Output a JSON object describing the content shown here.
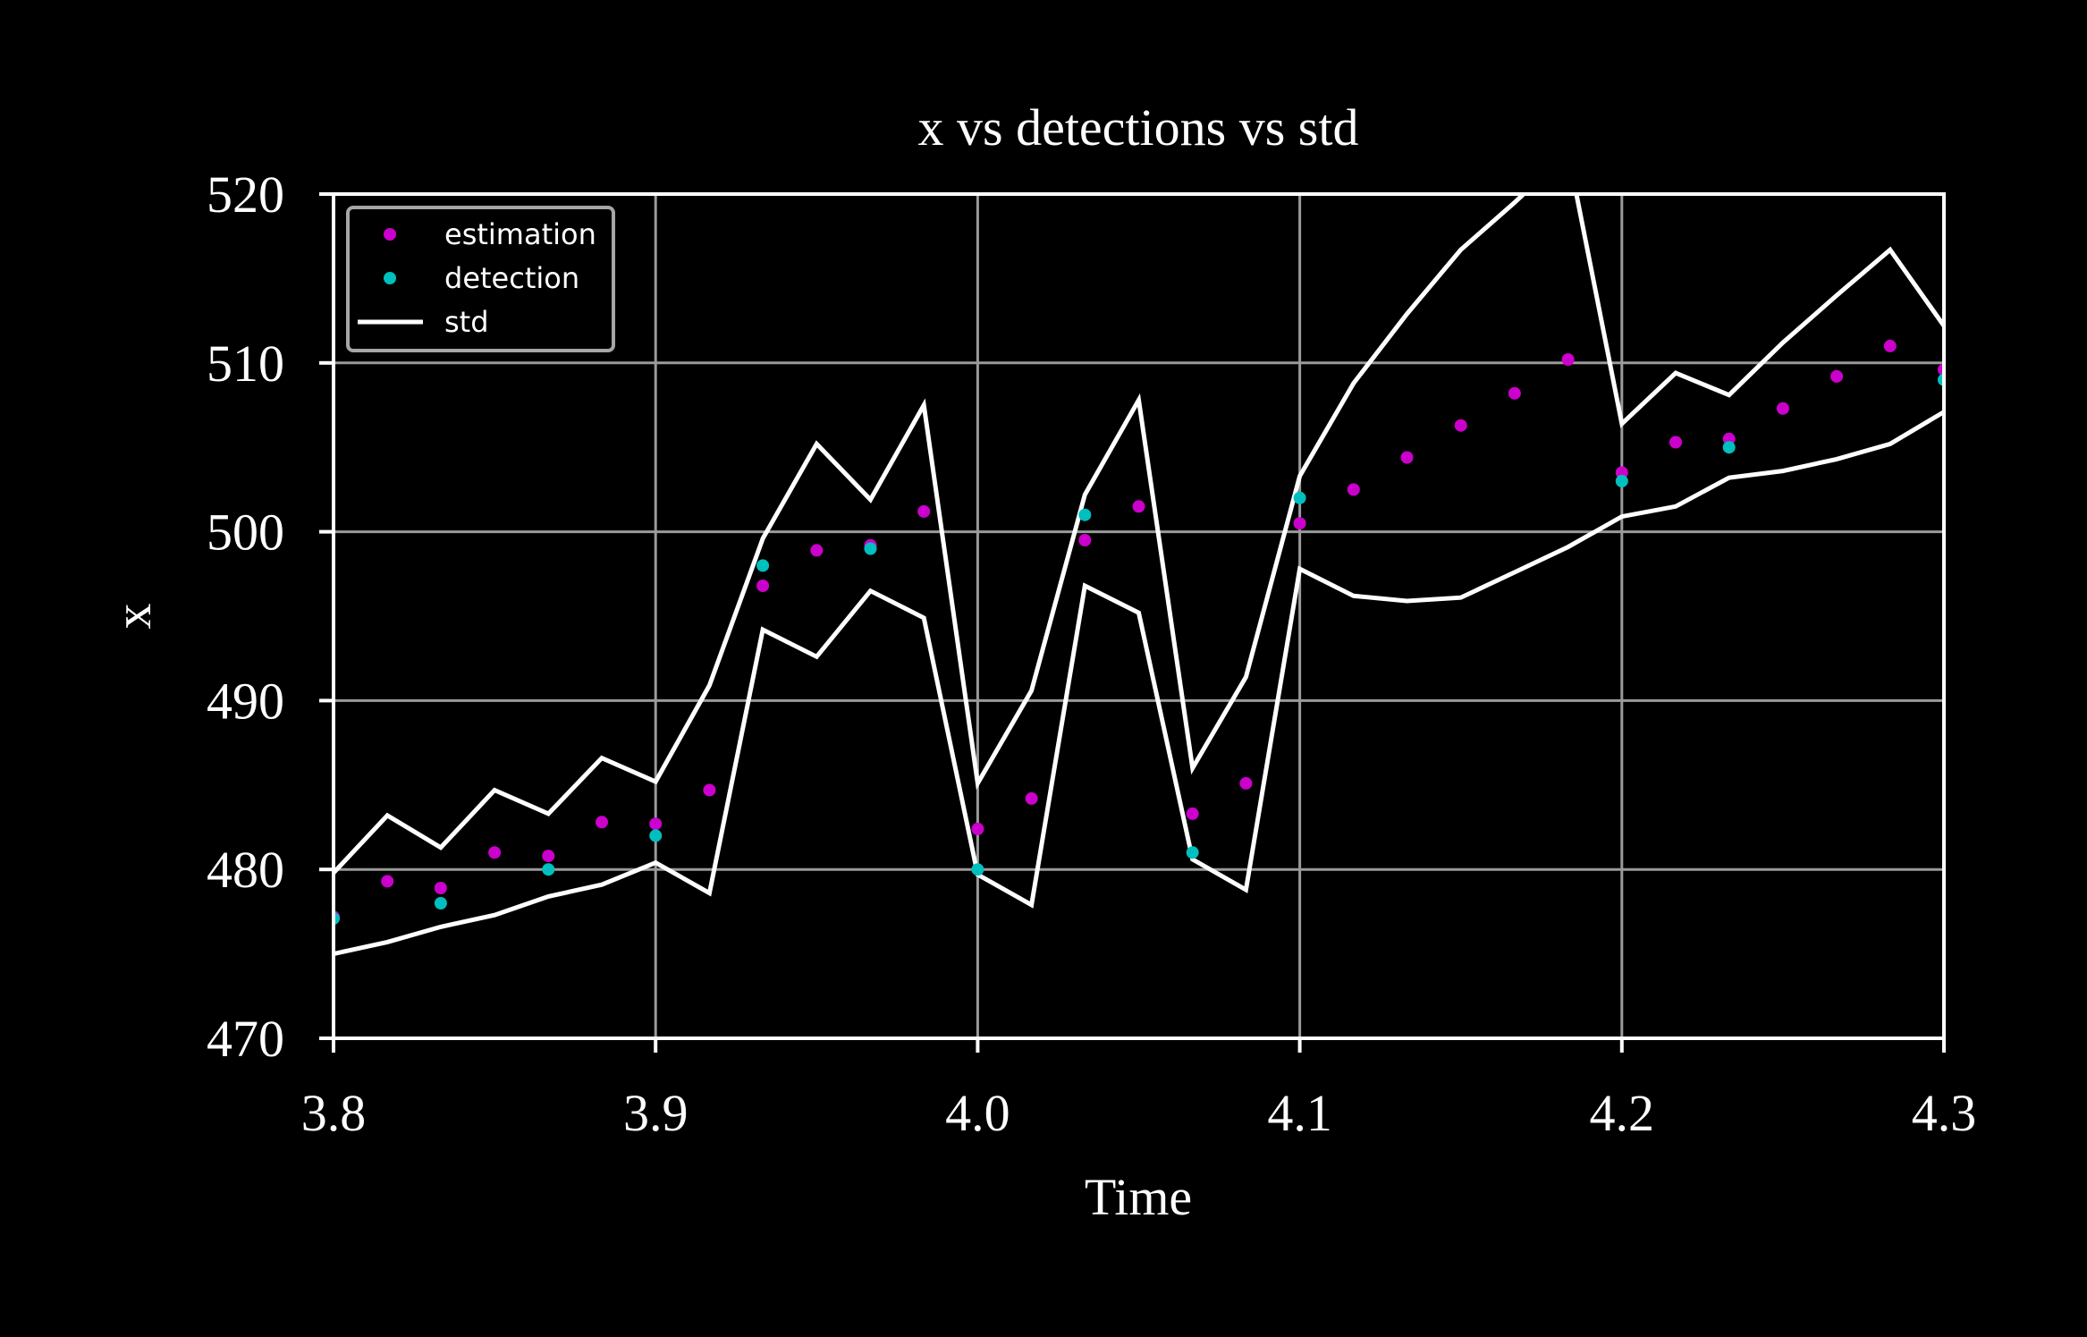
{
  "chart_data": {
    "type": "scatter",
    "title": "x vs detections vs std",
    "xlabel": "Time",
    "ylabel": "x",
    "xlim": [
      3.8,
      4.3
    ],
    "ylim": [
      470,
      520
    ],
    "x_ticks": [
      "3.8",
      "3.9",
      "4.0",
      "4.1",
      "4.2",
      "4.3"
    ],
    "y_ticks": [
      "470",
      "480",
      "490",
      "500",
      "510",
      "520"
    ],
    "grid": true,
    "legend_position": "top-left",
    "background_color": "#000000",
    "series": [
      {
        "name": "estimation",
        "kind": "points",
        "color": "#cc00cc",
        "x": [
          3.8,
          3.8167,
          3.8333,
          3.85,
          3.8667,
          3.8833,
          3.9,
          3.9167,
          3.9333,
          3.95,
          3.9667,
          3.9833,
          4.0,
          4.0167,
          4.0333,
          4.05,
          4.0667,
          4.0833,
          4.1,
          4.1167,
          4.1333,
          4.15,
          4.1667,
          4.1833,
          4.2,
          4.2167,
          4.2333,
          4.25,
          4.2667,
          4.2833,
          4.3
        ],
        "y": [
          477.2,
          479.3,
          478.9,
          481.0,
          480.8,
          482.8,
          482.7,
          484.7,
          496.8,
          498.9,
          499.2,
          501.2,
          482.4,
          484.2,
          499.5,
          501.5,
          483.3,
          485.1,
          500.5,
          502.5,
          504.4,
          506.3,
          508.2,
          510.2,
          503.5,
          505.3,
          505.5,
          507.3,
          509.2,
          511.0,
          509.6
        ]
      },
      {
        "name": "detection",
        "kind": "points",
        "color": "#00bfbf",
        "x": [
          3.8,
          3.8333,
          3.8667,
          3.9,
          3.9333,
          3.9667,
          4.0,
          4.0333,
          4.0667,
          4.1,
          4.2,
          4.2333,
          4.3
        ],
        "y": [
          477.1,
          478.0,
          480.0,
          482.0,
          498.0,
          499.0,
          480.0,
          501.0,
          481.0,
          502.0,
          503.0,
          505.0,
          509.0
        ]
      },
      {
        "name": "std",
        "kind": "line",
        "color": "#ffffff",
        "x": [
          3.8,
          3.8167,
          3.8333,
          3.85,
          3.8667,
          3.8833,
          3.9,
          3.9167,
          3.9333,
          3.95,
          3.9667,
          3.9833,
          4.0,
          4.0167,
          4.0333,
          4.05,
          4.0667,
          4.0833,
          4.1,
          4.1167,
          4.1333,
          4.15,
          4.1667,
          4.1833,
          4.2,
          4.2167,
          4.2333,
          4.25,
          4.2667,
          4.2833,
          4.3
        ],
        "y": [
          479.8,
          483.2,
          481.3,
          484.7,
          483.3,
          486.6,
          485.2,
          490.9,
          499.6,
          505.2,
          501.9,
          507.5,
          485.1,
          490.6,
          502.2,
          507.8,
          486.0,
          491.4,
          503.3,
          508.8,
          512.9,
          516.7,
          519.5,
          522.5,
          506.4,
          509.4,
          508.1,
          511.2,
          514.0,
          516.7,
          512.2
        ]
      },
      {
        "kind": "line",
        "color": "#ffffff",
        "x": [
          3.8,
          3.8167,
          3.8333,
          3.85,
          3.8667,
          3.8833,
          3.9,
          3.9167,
          3.9333,
          3.95,
          3.9667,
          3.9833,
          4.0,
          4.0167,
          4.0333,
          4.05,
          4.0667,
          4.0833,
          4.1,
          4.1167,
          4.1333,
          4.15,
          4.1667,
          4.1833,
          4.2,
          4.2167,
          4.2333,
          4.25,
          4.2667,
          4.2833,
          4.3
        ],
        "y": [
          475.0,
          475.7,
          476.6,
          477.3,
          478.4,
          479.1,
          480.4,
          478.6,
          494.2,
          492.6,
          496.5,
          494.9,
          479.7,
          477.9,
          496.8,
          495.2,
          480.6,
          478.8,
          497.8,
          496.2,
          495.9,
          496.1,
          497.6,
          499.1,
          500.9,
          501.5,
          503.2,
          503.6,
          504.3,
          505.2,
          507.1
        ]
      }
    ]
  }
}
